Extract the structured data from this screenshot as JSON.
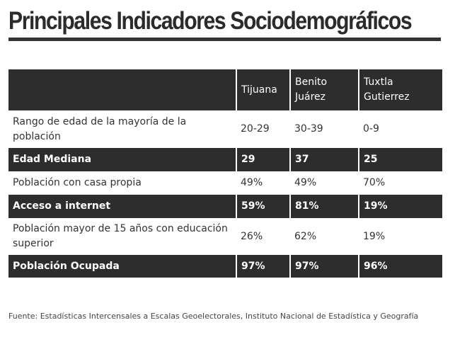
{
  "title": "Principales Indicadores Sociodemográficos",
  "table": {
    "columns": [
      "Tijuana",
      "Benito\nJuárez",
      "Tuxtla\nGutierrez"
    ],
    "rows": [
      {
        "label": "Rango de edad de la mayoría de la población",
        "values": [
          "20-29",
          "30-39",
          "0-9"
        ],
        "style": "light"
      },
      {
        "label": "Edad Mediana",
        "values": [
          "29",
          "37",
          "25"
        ],
        "style": "dark"
      },
      {
        "label": "Población con casa propia",
        "values": [
          "49%",
          "49%",
          "70%"
        ],
        "style": "light"
      },
      {
        "label": "Acceso a internet",
        "values": [
          "59%",
          "81%",
          "19%"
        ],
        "style": "dark"
      },
      {
        "label": "Población mayor de 15 años con educación superior",
        "values": [
          "26%",
          "62%",
          "19%"
        ],
        "style": "light"
      },
      {
        "label": "Población Ocupada",
        "values": [
          "97%",
          "97%",
          "96%"
        ],
        "style": "dark"
      }
    ]
  },
  "source": "Fuente:  Estadísticas Intercensales a Escalas Geoelectorales, Instituto Nacional de Estadística y Geografía",
  "colors": {
    "dark_row": "#2d2d2d",
    "text": "#333333",
    "light_text_on_dark": "#ffffff"
  }
}
